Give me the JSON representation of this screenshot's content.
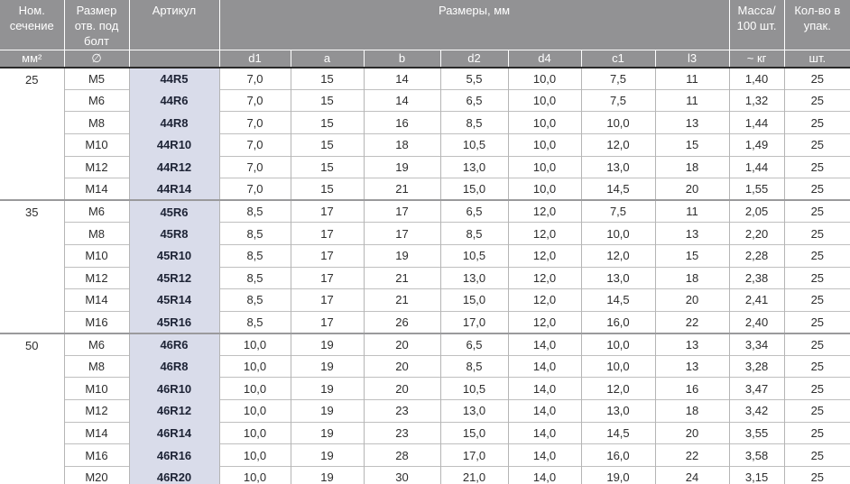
{
  "colors": {
    "header_bg": "#929294",
    "header_text": "#ffffff",
    "article_column_bg": "#d9dcea",
    "article_text": "#1d2335",
    "grid_line": "#b5b5b5",
    "block_divider": "#9a9a9c",
    "header_divider": "#2a2a2a"
  },
  "table": {
    "header": {
      "nom": "Ном.\nсечение",
      "bolt": "Размер\nотв. под\nболт",
      "article": "Артикул",
      "dims_group": "Размеры, мм",
      "mass": "Масса/\n100 шт.",
      "qty": "Кол-во в\nупак."
    },
    "subheader": [
      "мм²",
      "∅",
      "",
      "d1",
      "a",
      "b",
      "d2",
      "d4",
      "c1",
      "l3",
      "~ кг",
      "шт."
    ],
    "value_keys": [
      "d1",
      "a",
      "b",
      "d2",
      "d4",
      "c1",
      "l3",
      "mass",
      "qty"
    ],
    "blocks": [
      {
        "section": "25",
        "rows": [
          {
            "size": "M5",
            "article": "44R5",
            "values": [
              "7,0",
              "15",
              "14",
              "5,5",
              "10,0",
              "7,5",
              "11",
              "1,40",
              "25"
            ]
          },
          {
            "size": "M6",
            "article": "44R6",
            "values": [
              "7,0",
              "15",
              "14",
              "6,5",
              "10,0",
              "7,5",
              "11",
              "1,32",
              "25"
            ]
          },
          {
            "size": "M8",
            "article": "44R8",
            "values": [
              "7,0",
              "15",
              "16",
              "8,5",
              "10,0",
              "10,0",
              "13",
              "1,44",
              "25"
            ]
          },
          {
            "size": "M10",
            "article": "44R10",
            "values": [
              "7,0",
              "15",
              "18",
              "10,5",
              "10,0",
              "12,0",
              "15",
              "1,49",
              "25"
            ]
          },
          {
            "size": "M12",
            "article": "44R12",
            "values": [
              "7,0",
              "15",
              "19",
              "13,0",
              "10,0",
              "13,0",
              "18",
              "1,44",
              "25"
            ]
          },
          {
            "size": "M14",
            "article": "44R14",
            "values": [
              "7,0",
              "15",
              "21",
              "15,0",
              "10,0",
              "14,5",
              "20",
              "1,55",
              "25"
            ]
          }
        ]
      },
      {
        "section": "35",
        "rows": [
          {
            "size": "M6",
            "article": "45R6",
            "values": [
              "8,5",
              "17",
              "17",
              "6,5",
              "12,0",
              "7,5",
              "11",
              "2,05",
              "25"
            ]
          },
          {
            "size": "M8",
            "article": "45R8",
            "values": [
              "8,5",
              "17",
              "17",
              "8,5",
              "12,0",
              "10,0",
              "13",
              "2,20",
              "25"
            ]
          },
          {
            "size": "M10",
            "article": "45R10",
            "values": [
              "8,5",
              "17",
              "19",
              "10,5",
              "12,0",
              "12,0",
              "15",
              "2,28",
              "25"
            ]
          },
          {
            "size": "M12",
            "article": "45R12",
            "values": [
              "8,5",
              "17",
              "21",
              "13,0",
              "12,0",
              "13,0",
              "18",
              "2,38",
              "25"
            ]
          },
          {
            "size": "M14",
            "article": "45R14",
            "values": [
              "8,5",
              "17",
              "21",
              "15,0",
              "12,0",
              "14,5",
              "20",
              "2,41",
              "25"
            ]
          },
          {
            "size": "M16",
            "article": "45R16",
            "values": [
              "8,5",
              "17",
              "26",
              "17,0",
              "12,0",
              "16,0",
              "22",
              "2,40",
              "25"
            ]
          }
        ]
      },
      {
        "section": "50",
        "rows": [
          {
            "size": "M6",
            "article": "46R6",
            "values": [
              "10,0",
              "19",
              "20",
              "6,5",
              "14,0",
              "10,0",
              "13",
              "3,34",
              "25"
            ]
          },
          {
            "size": "M8",
            "article": "46R8",
            "values": [
              "10,0",
              "19",
              "20",
              "8,5",
              "14,0",
              "10,0",
              "13",
              "3,28",
              "25"
            ]
          },
          {
            "size": "M10",
            "article": "46R10",
            "values": [
              "10,0",
              "19",
              "20",
              "10,5",
              "14,0",
              "12,0",
              "16",
              "3,47",
              "25"
            ]
          },
          {
            "size": "M12",
            "article": "46R12",
            "values": [
              "10,0",
              "19",
              "23",
              "13,0",
              "14,0",
              "13,0",
              "18",
              "3,42",
              "25"
            ]
          },
          {
            "size": "M14",
            "article": "46R14",
            "values": [
              "10,0",
              "19",
              "23",
              "15,0",
              "14,0",
              "14,5",
              "20",
              "3,55",
              "25"
            ]
          },
          {
            "size": "M16",
            "article": "46R16",
            "values": [
              "10,0",
              "19",
              "28",
              "17,0",
              "14,0",
              "16,0",
              "22",
              "3,58",
              "25"
            ]
          },
          {
            "size": "M20",
            "article": "46R20",
            "values": [
              "10,0",
              "19",
              "30",
              "21,0",
              "14,0",
              "19,0",
              "24",
              "3,15",
              "25"
            ]
          }
        ]
      }
    ]
  }
}
